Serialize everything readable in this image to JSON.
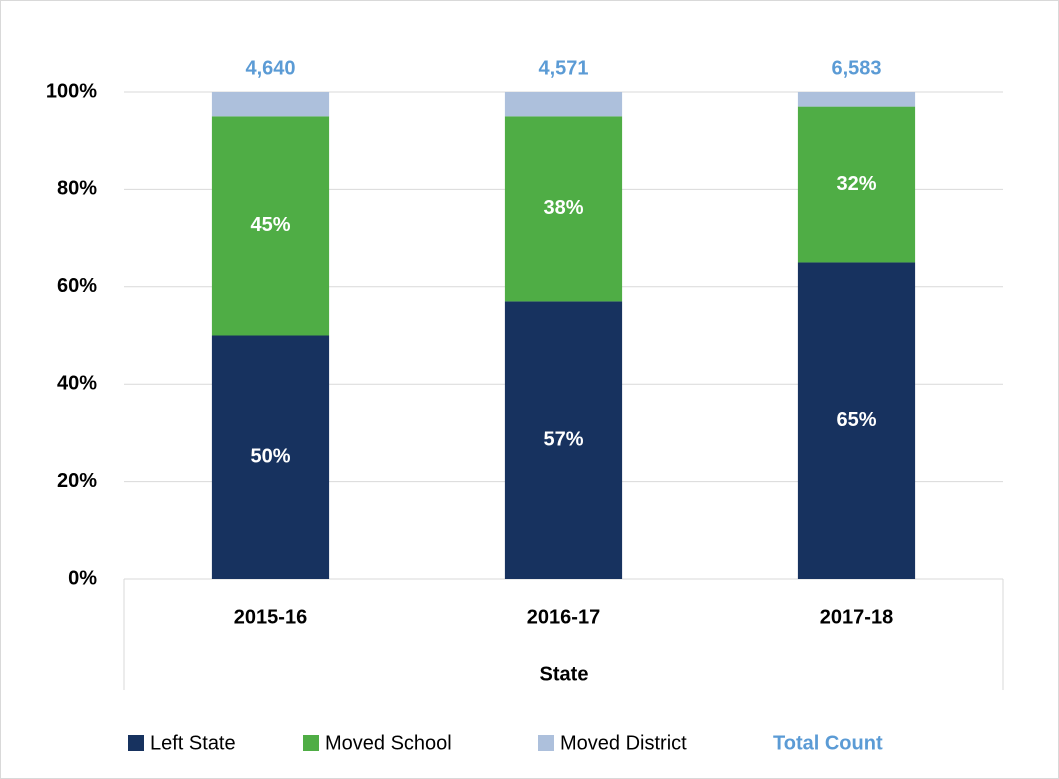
{
  "chart_data": {
    "type": "stacked_bar",
    "categories": [
      "2015-16",
      "2016-17",
      "2017-18"
    ],
    "x_label": "State",
    "series": [
      {
        "name": "Left State",
        "color": "#17325f",
        "values": [
          50,
          57,
          65
        ],
        "value_labels": [
          "50%",
          "57%",
          "65%"
        ]
      },
      {
        "name": "Moved School",
        "color": "#4fad45",
        "values": [
          45,
          38,
          32
        ],
        "value_labels": [
          "45%",
          "38%",
          "32%"
        ]
      },
      {
        "name": "Moved District",
        "color": "#adc0dc",
        "values": [
          5,
          5,
          3
        ]
      }
    ],
    "total_count": {
      "name": "Total Count",
      "color": "#5b9bd5",
      "values": [
        4640,
        4571,
        6583
      ],
      "value_labels": [
        "4,640",
        "4,571",
        "6,583"
      ]
    },
    "ylim": [
      0,
      100
    ],
    "yticks": [
      {
        "value": 0,
        "label": "0%"
      },
      {
        "value": 20,
        "label": "20%"
      },
      {
        "value": 40,
        "label": "40%"
      },
      {
        "value": 60,
        "label": "60%"
      },
      {
        "value": 80,
        "label": "80%"
      },
      {
        "value": 100,
        "label": "100%"
      }
    ],
    "grid": true,
    "legend": "bottom"
  }
}
